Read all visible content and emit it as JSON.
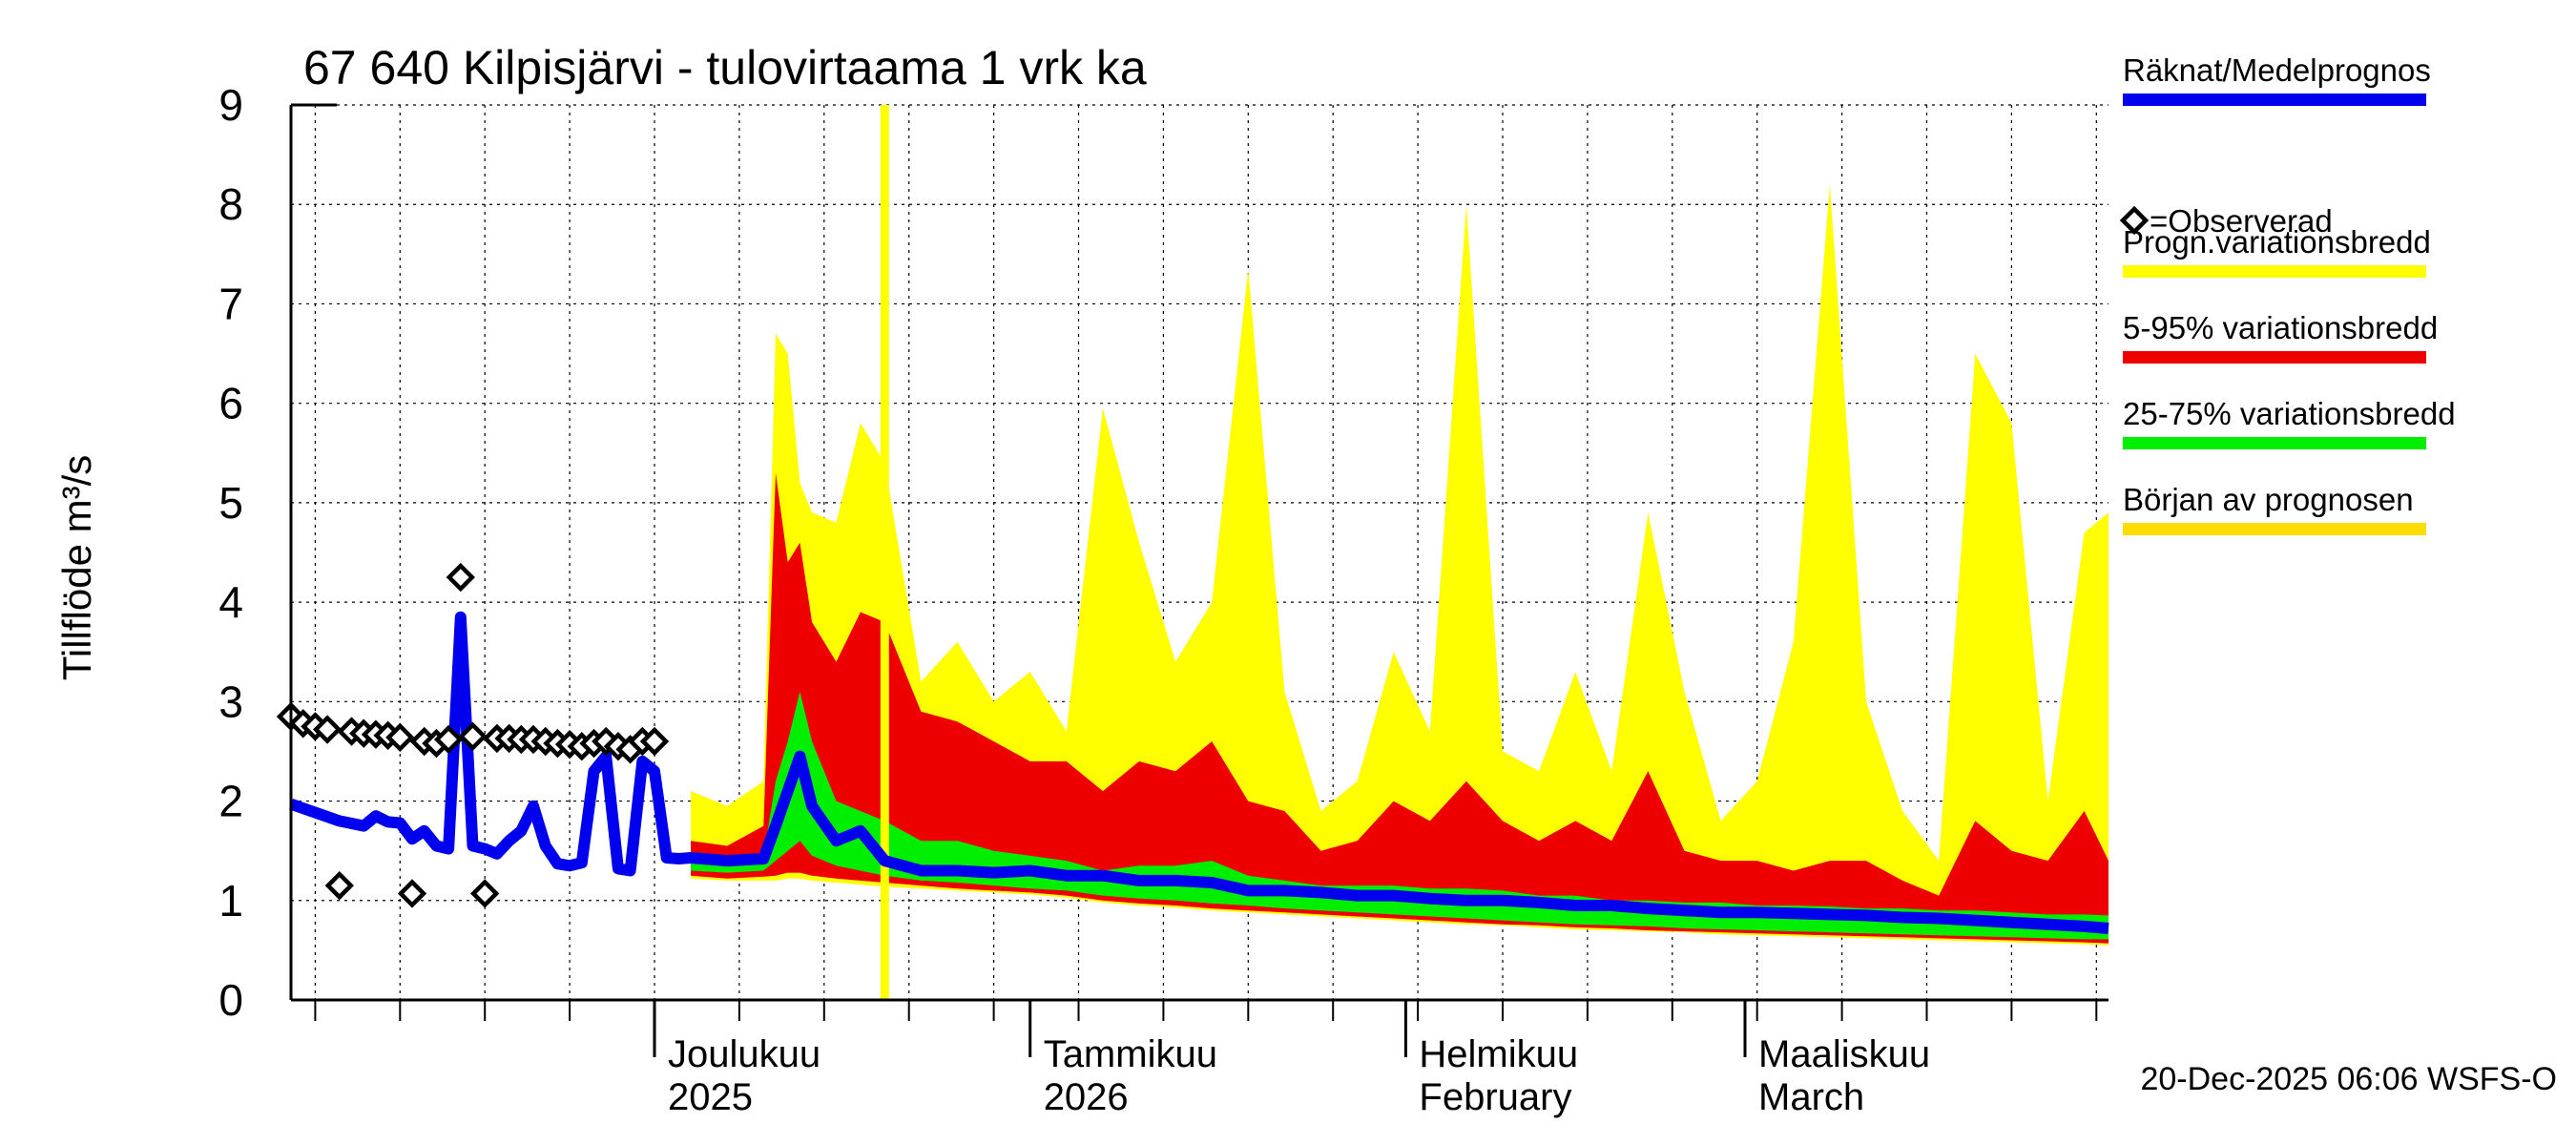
{
  "chart_data": {
    "type": "area",
    "title": "67 640 Kilpisjärvi - tulovirtaama 1 vrk ka",
    "ylabel": "Tillflöde m³/s",
    "xlabel": "",
    "ylim": [
      0,
      9
    ],
    "yticks": [
      0,
      1,
      2,
      3,
      4,
      5,
      6,
      7,
      8,
      9
    ],
    "x_start": "2025-11-01",
    "x_end": "2026-03-31",
    "grid": true,
    "month_labels": [
      {
        "date": "2025-12-01",
        "line1": "Joulukuu",
        "line2": "2025"
      },
      {
        "date": "2026-01-01",
        "line1": "Tammikuu",
        "line2": "2026"
      },
      {
        "date": "2026-02-01",
        "line1": "Helmikuu",
        "line2": "February"
      },
      {
        "date": "2026-03-01",
        "line1": "Maaliskuu",
        "line2": "March"
      }
    ],
    "forecast_start": "2025-12-20",
    "legend_position": "right",
    "legend": [
      {
        "label": "Räknat/Medelprognos",
        "color": "#0000ee"
      },
      {
        "label": "=Observerad",
        "color": "#000000"
      },
      {
        "label": "Progn.variationsbredd",
        "color": "#ffff00"
      },
      {
        "label": "5-95% variationsbredd",
        "color": "#ee0000"
      },
      {
        "label": "25-75% variationsbredd",
        "color": "#00ee00"
      },
      {
        "label": "Början av prognosen",
        "color": "#ffdd00"
      }
    ],
    "colors": {
      "mean": "#0000ee",
      "observed": "#000000",
      "range": "#ffff00",
      "p5_95": "#ee0000",
      "p25_75": "#00ee00",
      "forecast_start": "#ffff00"
    },
    "observed": [
      {
        "x": "2025-11-01",
        "y": 2.85
      },
      {
        "x": "2025-11-02",
        "y": 2.78
      },
      {
        "x": "2025-11-03",
        "y": 2.75
      },
      {
        "x": "2025-11-04",
        "y": 2.72
      },
      {
        "x": "2025-11-05",
        "y": 1.15
      },
      {
        "x": "2025-11-06",
        "y": 2.7
      },
      {
        "x": "2025-11-07",
        "y": 2.68
      },
      {
        "x": "2025-11-08",
        "y": 2.67
      },
      {
        "x": "2025-11-09",
        "y": 2.66
      },
      {
        "x": "2025-11-10",
        "y": 2.64
      },
      {
        "x": "2025-11-11",
        "y": 1.07
      },
      {
        "x": "2025-11-12",
        "y": 2.6
      },
      {
        "x": "2025-11-13",
        "y": 2.58
      },
      {
        "x": "2025-11-14",
        "y": 2.62
      },
      {
        "x": "2025-11-15",
        "y": 4.25
      },
      {
        "x": "2025-11-16",
        "y": 2.65
      },
      {
        "x": "2025-11-17",
        "y": 1.07
      },
      {
        "x": "2025-11-18",
        "y": 2.63
      },
      {
        "x": "2025-11-19",
        "y": 2.63
      },
      {
        "x": "2025-11-20",
        "y": 2.62
      },
      {
        "x": "2025-11-21",
        "y": 2.62
      },
      {
        "x": "2025-11-22",
        "y": 2.6
      },
      {
        "x": "2025-11-23",
        "y": 2.58
      },
      {
        "x": "2025-11-24",
        "y": 2.57
      },
      {
        "x": "2025-11-25",
        "y": 2.55
      },
      {
        "x": "2025-11-26",
        "y": 2.58
      },
      {
        "x": "2025-11-27",
        "y": 2.6
      },
      {
        "x": "2025-11-28",
        "y": 2.55
      },
      {
        "x": "2025-11-29",
        "y": 2.52
      },
      {
        "x": "2025-11-30",
        "y": 2.6
      },
      {
        "x": "2025-12-01",
        "y": 2.6
      }
    ],
    "mean_history": [
      {
        "x": "2025-11-01",
        "y": 1.97
      },
      {
        "x": "2025-11-05",
        "y": 1.8
      },
      {
        "x": "2025-11-07",
        "y": 1.75
      },
      {
        "x": "2025-11-08",
        "y": 1.85
      },
      {
        "x": "2025-11-09",
        "y": 1.79
      },
      {
        "x": "2025-11-10",
        "y": 1.78
      },
      {
        "x": "2025-11-11",
        "y": 1.62
      },
      {
        "x": "2025-11-12",
        "y": 1.7
      },
      {
        "x": "2025-11-13",
        "y": 1.55
      },
      {
        "x": "2025-11-14",
        "y": 1.52
      },
      {
        "x": "2025-11-15",
        "y": 3.85
      },
      {
        "x": "2025-11-16",
        "y": 1.55
      },
      {
        "x": "2025-11-17",
        "y": 1.52
      },
      {
        "x": "2025-11-18",
        "y": 1.47
      },
      {
        "x": "2025-11-19",
        "y": 1.6
      },
      {
        "x": "2025-11-20",
        "y": 1.7
      },
      {
        "x": "2025-11-21",
        "y": 1.95
      },
      {
        "x": "2025-11-22",
        "y": 1.55
      },
      {
        "x": "2025-11-23",
        "y": 1.37
      },
      {
        "x": "2025-11-24",
        "y": 1.35
      },
      {
        "x": "2025-11-25",
        "y": 1.38
      },
      {
        "x": "2025-11-26",
        "y": 2.3
      },
      {
        "x": "2025-11-27",
        "y": 2.45
      },
      {
        "x": "2025-11-28",
        "y": 1.32
      },
      {
        "x": "2025-11-29",
        "y": 1.3
      },
      {
        "x": "2025-11-30",
        "y": 2.4
      },
      {
        "x": "2025-12-01",
        "y": 2.3
      },
      {
        "x": "2025-12-02",
        "y": 1.43
      },
      {
        "x": "2025-12-03",
        "y": 1.42
      }
    ],
    "forecast": {
      "x": [
        "2025-12-04",
        "2025-12-07",
        "2025-12-10",
        "2025-12-11",
        "2025-12-12",
        "2025-12-13",
        "2025-12-14",
        "2025-12-16",
        "2025-12-18",
        "2025-12-20",
        "2025-12-23",
        "2025-12-26",
        "2025-12-29",
        "2026-01-01",
        "2026-01-04",
        "2026-01-07",
        "2026-01-10",
        "2026-01-13",
        "2026-01-16",
        "2026-01-19",
        "2026-01-22",
        "2026-01-25",
        "2026-01-28",
        "2026-01-31",
        "2026-02-03",
        "2026-02-06",
        "2026-02-09",
        "2026-02-12",
        "2026-02-15",
        "2026-02-18",
        "2026-02-21",
        "2026-02-24",
        "2026-02-27",
        "2026-03-02",
        "2026-03-05",
        "2026-03-08",
        "2026-03-11",
        "2026-03-14",
        "2026-03-17",
        "2026-03-20",
        "2026-03-23",
        "2026-03-26",
        "2026-03-29",
        "2026-03-31"
      ],
      "max": [
        2.1,
        1.95,
        2.2,
        6.7,
        6.5,
        5.2,
        4.9,
        4.8,
        5.8,
        5.4,
        3.2,
        3.6,
        3.0,
        3.3,
        2.7,
        5.95,
        4.6,
        3.4,
        4.0,
        7.35,
        3.1,
        1.9,
        2.2,
        3.5,
        2.7,
        8.0,
        2.5,
        2.3,
        3.3,
        2.3,
        4.9,
        3.1,
        1.8,
        2.2,
        3.6,
        8.2,
        3.0,
        1.9,
        1.4,
        6.5,
        5.8,
        2.0,
        4.7,
        4.9
      ],
      "p95": [
        1.6,
        1.55,
        1.75,
        5.3,
        4.4,
        4.6,
        3.8,
        3.4,
        3.9,
        3.8,
        2.9,
        2.8,
        2.6,
        2.4,
        2.4,
        2.1,
        2.4,
        2.3,
        2.6,
        2.0,
        1.9,
        1.5,
        1.6,
        2.0,
        1.8,
        2.2,
        1.8,
        1.6,
        1.8,
        1.6,
        2.3,
        1.5,
        1.4,
        1.4,
        1.3,
        1.4,
        1.4,
        1.2,
        1.05,
        1.8,
        1.5,
        1.4,
        1.9,
        1.4
      ],
      "p75": [
        1.4,
        1.38,
        1.45,
        2.2,
        2.6,
        3.1,
        2.6,
        2.0,
        1.9,
        1.8,
        1.6,
        1.6,
        1.5,
        1.45,
        1.4,
        1.3,
        1.35,
        1.35,
        1.4,
        1.25,
        1.2,
        1.15,
        1.15,
        1.15,
        1.12,
        1.12,
        1.1,
        1.05,
        1.05,
        1.0,
        1.0,
        0.98,
        0.98,
        0.95,
        0.95,
        0.94,
        0.92,
        0.92,
        0.9,
        0.9,
        0.88,
        0.86,
        0.86,
        0.85
      ],
      "p25": [
        1.3,
        1.28,
        1.3,
        1.4,
        1.5,
        1.6,
        1.45,
        1.35,
        1.3,
        1.25,
        1.2,
        1.18,
        1.15,
        1.12,
        1.1,
        1.05,
        1.02,
        1.0,
        0.97,
        0.95,
        0.92,
        0.9,
        0.88,
        0.86,
        0.84,
        0.82,
        0.8,
        0.78,
        0.76,
        0.75,
        0.74,
        0.72,
        0.71,
        0.7,
        0.69,
        0.68,
        0.67,
        0.66,
        0.65,
        0.64,
        0.63,
        0.62,
        0.61,
        0.61
      ],
      "p5": [
        1.25,
        1.22,
        1.24,
        1.25,
        1.28,
        1.28,
        1.25,
        1.22,
        1.2,
        1.18,
        1.15,
        1.12,
        1.1,
        1.08,
        1.05,
        1.0,
        0.97,
        0.95,
        0.92,
        0.9,
        0.88,
        0.86,
        0.84,
        0.82,
        0.8,
        0.78,
        0.76,
        0.75,
        0.73,
        0.72,
        0.7,
        0.69,
        0.68,
        0.67,
        0.66,
        0.65,
        0.64,
        0.63,
        0.62,
        0.61,
        0.6,
        0.59,
        0.58,
        0.57
      ],
      "min": [
        1.22,
        1.2,
        1.2,
        1.2,
        1.22,
        1.22,
        1.2,
        1.18,
        1.16,
        1.14,
        1.12,
        1.1,
        1.08,
        1.06,
        1.03,
        0.98,
        0.95,
        0.93,
        0.9,
        0.88,
        0.86,
        0.84,
        0.82,
        0.8,
        0.78,
        0.76,
        0.75,
        0.73,
        0.71,
        0.7,
        0.69,
        0.68,
        0.66,
        0.65,
        0.64,
        0.63,
        0.62,
        0.61,
        0.6,
        0.59,
        0.58,
        0.57,
        0.56,
        0.55
      ],
      "mean": [
        1.43,
        1.4,
        1.42,
        1.75,
        2.1,
        2.45,
        1.95,
        1.6,
        1.7,
        1.4,
        1.3,
        1.3,
        1.28,
        1.3,
        1.25,
        1.25,
        1.2,
        1.2,
        1.18,
        1.1,
        1.1,
        1.08,
        1.05,
        1.05,
        1.02,
        1.0,
        1.0,
        0.98,
        0.95,
        0.95,
        0.92,
        0.9,
        0.88,
        0.88,
        0.87,
        0.86,
        0.85,
        0.83,
        0.82,
        0.8,
        0.78,
        0.76,
        0.74,
        0.72
      ]
    },
    "footer": "20-Dec-2025 06:06 WSFS-O"
  }
}
